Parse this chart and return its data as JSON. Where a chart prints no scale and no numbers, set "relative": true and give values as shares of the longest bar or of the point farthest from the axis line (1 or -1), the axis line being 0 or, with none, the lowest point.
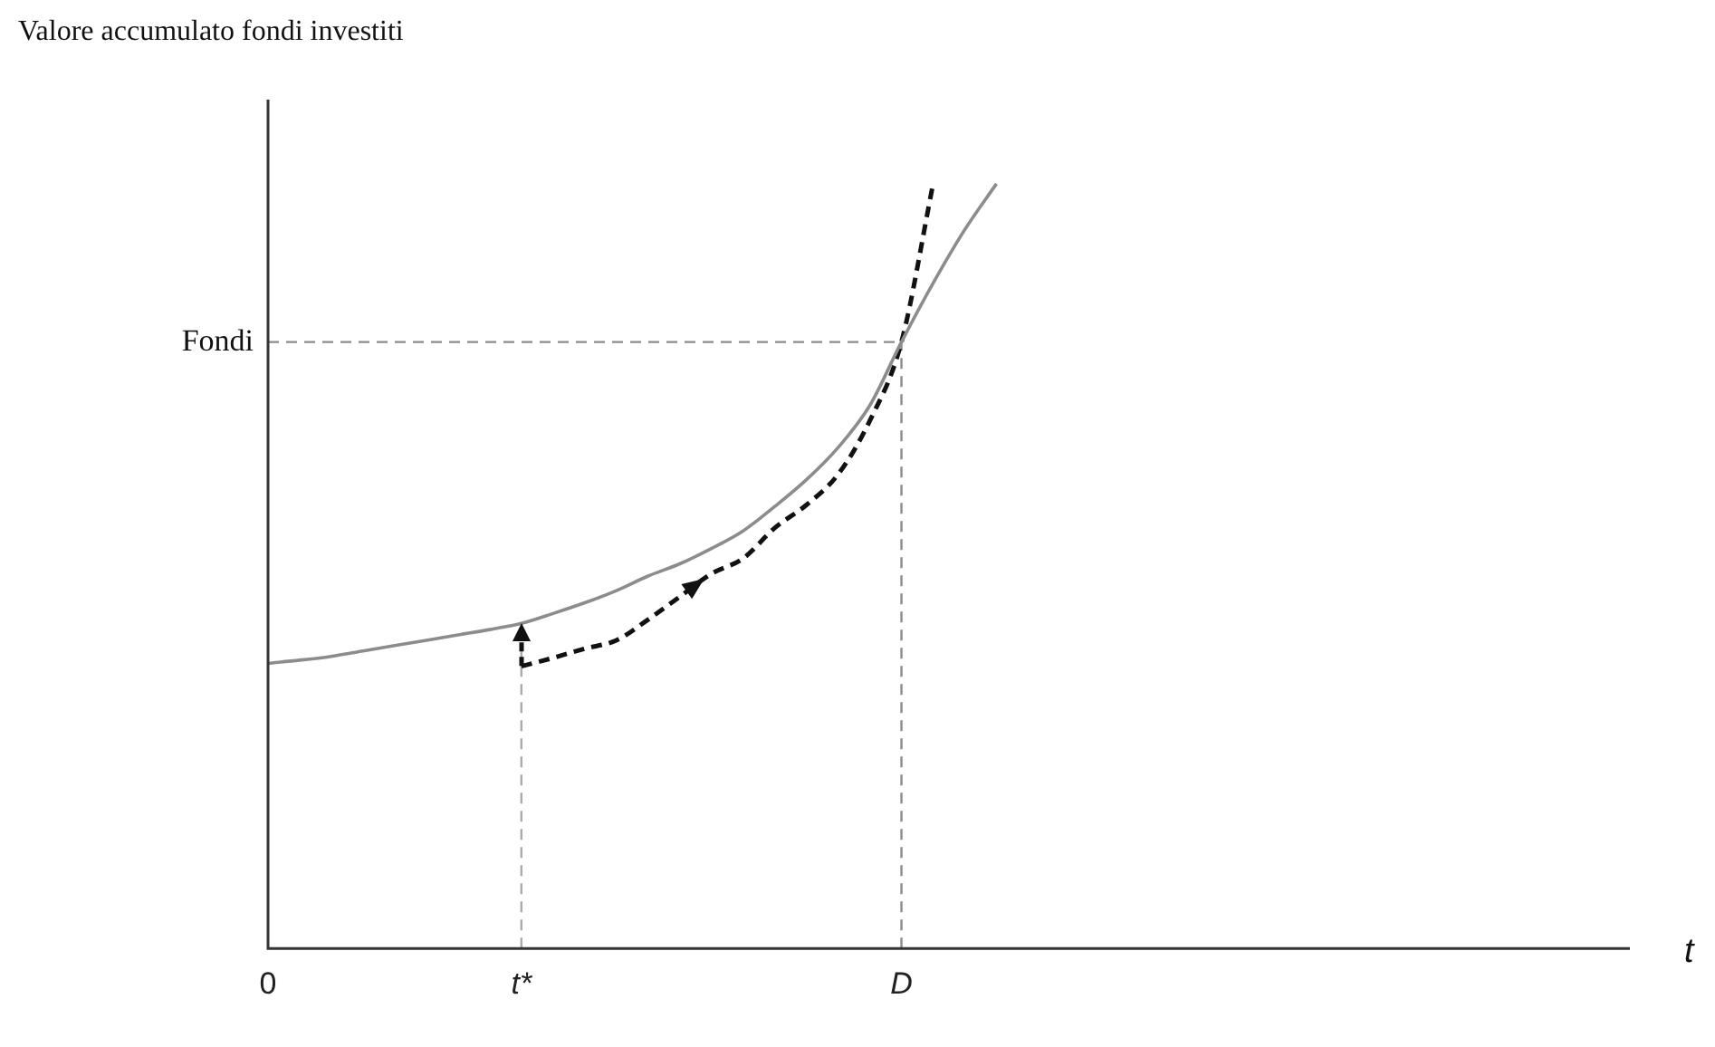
{
  "chart_data": {
    "type": "line",
    "ylabel": "Valore accumulato fondi investiti",
    "xlabel": "t",
    "relative": true,
    "categories": [
      "0",
      null,
      null,
      null,
      null,
      null,
      null,
      null,
      "t*",
      null,
      null,
      null,
      null,
      null,
      null,
      null,
      null,
      null,
      null,
      null,
      "D",
      null,
      null,
      null,
      null,
      null,
      null,
      null,
      null,
      null,
      null,
      null,
      null,
      null,
      null,
      null,
      null,
      null,
      null,
      null,
      null,
      null,
      null,
      null
    ],
    "series": [
      {
        "color": "#8c8c8c",
        "line_style": "solid",
        "values": [
          0.373,
          0.377,
          0.382,
          0.389,
          0.396,
          0.403,
          0.41,
          0.417,
          0.425,
          0.438,
          0.452,
          0.468,
          0.487,
          0.503,
          0.523,
          0.546,
          0.578,
          0.613,
          0.655,
          0.71,
          0.793,
          0.87,
          0.94,
          1.0,
          null,
          null,
          null,
          null,
          null,
          null,
          null,
          null,
          null,
          null,
          null,
          null,
          null,
          null,
          null,
          null,
          null,
          null,
          null,
          null
        ]
      },
      {
        "color": "#111111",
        "line_style": "dashed",
        "values": [
          null,
          null,
          null,
          null,
          null,
          null,
          null,
          null,
          0.369,
          0.38,
          0.392,
          0.403,
          0.43,
          0.46,
          0.49,
          0.51,
          0.55,
          0.58,
          0.62,
          0.69,
          0.793,
          1.0,
          null,
          null,
          null,
          null,
          null,
          null,
          null,
          null,
          null,
          null,
          null,
          null,
          null,
          null,
          null,
          null,
          null,
          null,
          null,
          null,
          null,
          null
        ]
      }
    ],
    "ref_lines": [
      {
        "axis": "y",
        "value": 0.793,
        "label": "Fondi",
        "color": "#8c8c8c",
        "line_style": "dashed"
      },
      {
        "axis": "x",
        "value": "t*",
        "color": "#aaaaaa",
        "line_style": "dashed"
      },
      {
        "axis": "x",
        "value": "D",
        "color": "#8c8c8c",
        "line_style": "dashed"
      }
    ]
  }
}
